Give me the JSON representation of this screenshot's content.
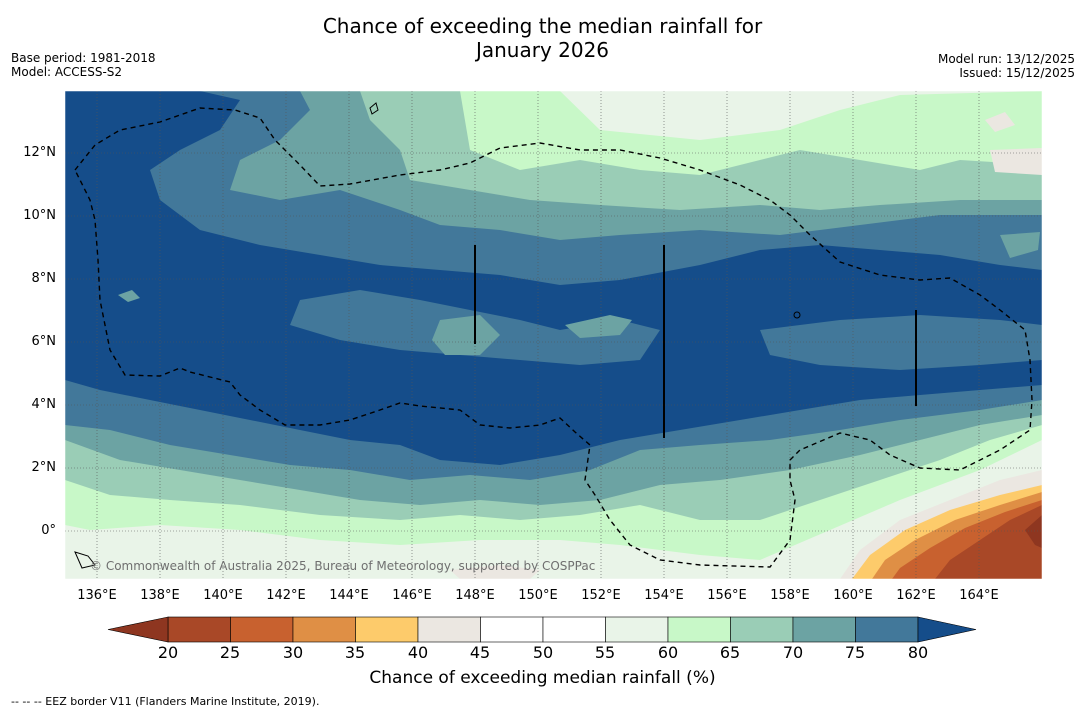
{
  "title_line1": "Chance of exceeding the median rainfall for",
  "title_line2": "January 2026",
  "meta_left": {
    "base_period": "Base period: 1981-2018",
    "model": "Model: ACCESS-S2"
  },
  "meta_right": {
    "model_run": "Model run: 13/12/2025",
    "issued": "Issued: 15/12/2025"
  },
  "map": {
    "copyright": "© Commonwealth of Australia 2025, Bureau of Meteorology, supported by COSPPac",
    "lat_labels": [
      "12°N",
      "10°N",
      "8°N",
      "6°N",
      "4°N",
      "2°N",
      "0°"
    ],
    "lon_labels": [
      "136°E",
      "138°E",
      "140°E",
      "142°E",
      "144°E",
      "146°E",
      "148°E",
      "150°E",
      "152°E",
      "154°E",
      "156°E",
      "158°E",
      "160°E",
      "162°E",
      "164°E"
    ]
  },
  "colorbar": {
    "ticks": [
      "20",
      "25",
      "30",
      "35",
      "40",
      "45",
      "50",
      "55",
      "60",
      "65",
      "70",
      "75",
      "80"
    ],
    "colors": [
      "#a94827",
      "#c8612f",
      "#df8f45",
      "#fdcb6b",
      "#ebe7e1",
      "#ffffff",
      "#ffffff",
      "#e9f4e8",
      "#c8f8c8",
      "#9acdb6",
      "#6ca3a3",
      "#42789a",
      "#154d8a"
    ],
    "under_color": "#8e3620",
    "over_color": "#154d8a",
    "label": "Chance of exceeding median rainfall (%)"
  },
  "footer": "--  --  -- EEZ border V11 (Flanders Marine Institute, 2019)."
}
